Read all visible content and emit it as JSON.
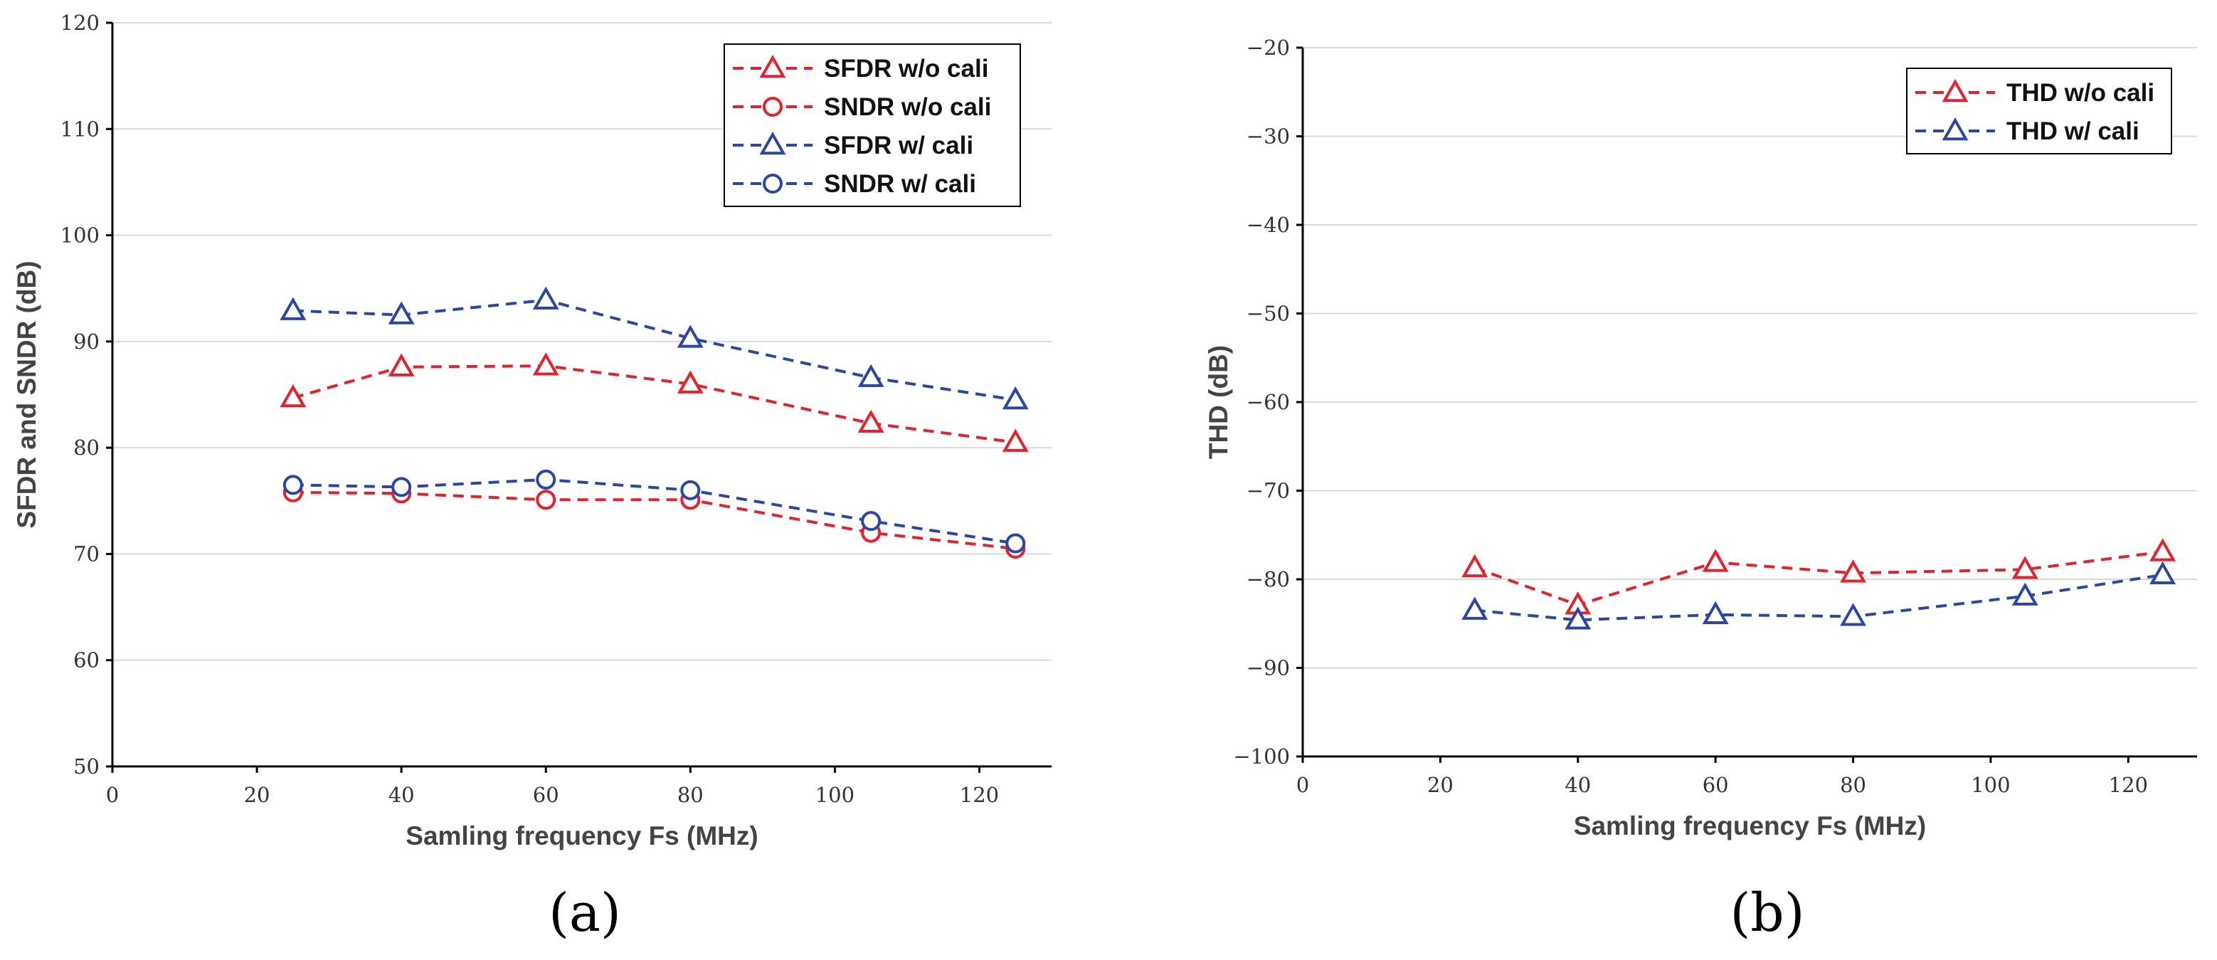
{
  "colors": {
    "red": "#e8202a",
    "blue": "#2a46a8"
  },
  "chart_data": [
    {
      "type": "line",
      "caption": "(a)",
      "xlabel": "Samling frequency Fs (MHz)",
      "ylabel": "SFDR and SNDR (dB)",
      "xlim": [
        0,
        130
      ],
      "ylim": [
        50,
        120
      ],
      "xticks": [
        0,
        20,
        40,
        60,
        80,
        100,
        120
      ],
      "yticks": [
        50,
        60,
        70,
        80,
        90,
        100,
        110,
        120
      ],
      "grid": true,
      "legend_position": "top-right",
      "x": [
        25,
        40,
        60,
        80,
        105,
        125
      ],
      "series": [
        {
          "name": "SFDR w/o cali",
          "color": "red",
          "marker": "triangle",
          "values": [
            84.7,
            87.6,
            87.7,
            86.0,
            82.3,
            80.5
          ]
        },
        {
          "name": "SNDR w/o cali",
          "color": "red",
          "marker": "circle",
          "values": [
            75.8,
            75.7,
            75.1,
            75.1,
            72.0,
            70.5
          ]
        },
        {
          "name": "SFDR w/ cali",
          "color": "blue",
          "marker": "triangle",
          "values": [
            92.9,
            92.5,
            93.9,
            90.3,
            86.6,
            84.5
          ]
        },
        {
          "name": "SNDR w/ cali",
          "color": "blue",
          "marker": "circle",
          "values": [
            76.5,
            76.3,
            77.0,
            76.0,
            73.1,
            71.0
          ]
        }
      ]
    },
    {
      "type": "line",
      "caption": "(b)",
      "xlabel": "Samling frequency Fs (MHz)",
      "ylabel": "THD (dB)",
      "xlim": [
        0,
        130
      ],
      "ylim": [
        -100,
        -20
      ],
      "xticks": [
        0,
        20,
        40,
        60,
        80,
        100,
        120
      ],
      "yticks": [
        -100,
        -90,
        -80,
        -70,
        -60,
        -50,
        -40,
        -30,
        -20
      ],
      "grid": true,
      "legend_position": "top-right",
      "x": [
        25,
        40,
        60,
        80,
        105,
        125
      ],
      "series": [
        {
          "name": "THD w/o cali",
          "color": "red",
          "marker": "triangle",
          "values": [
            -78.7,
            -82.9,
            -78.1,
            -79.3,
            -78.9,
            -76.9
          ]
        },
        {
          "name": "THD w/ cali",
          "color": "blue",
          "marker": "triangle",
          "values": [
            -83.5,
            -84.6,
            -84.0,
            -84.2,
            -81.9,
            -79.5
          ]
        }
      ]
    }
  ]
}
